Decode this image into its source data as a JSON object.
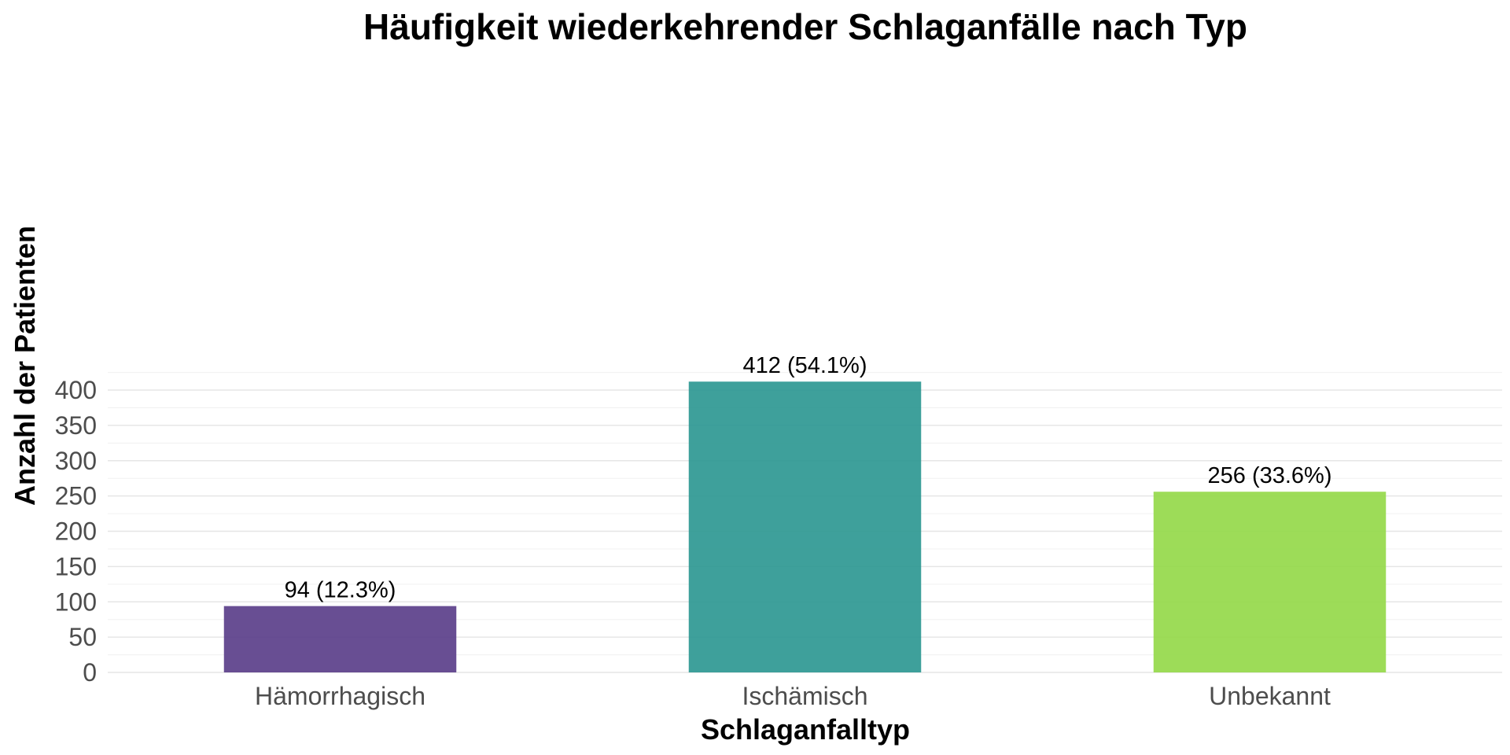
{
  "chart_data": {
    "type": "bar",
    "title": "Häufigkeit wiederkehrender Schlaganfälle nach Typ",
    "xlabel": "Schlaganfalltyp",
    "ylabel": "Anzahl der Patienten",
    "categories": [
      "Hämorrhagisch",
      "Ischämisch",
      "Unbekannt"
    ],
    "values": [
      94,
      412,
      256
    ],
    "data_labels": [
      "94 (12.3%)",
      "412 (54.1%)",
      "256 (33.6%)"
    ],
    "colors": [
      "#5b3f8a",
      "#2e9893",
      "#95d94a"
    ],
    "ylim": [
      0,
      425
    ],
    "yticks": [
      0,
      50,
      100,
      150,
      200,
      250,
      300,
      350,
      400
    ],
    "ytick_labels": [
      "0",
      "50",
      "100",
      "150",
      "200",
      "250",
      "300",
      "350",
      "400"
    ],
    "grid": true,
    "legend": "none"
  }
}
